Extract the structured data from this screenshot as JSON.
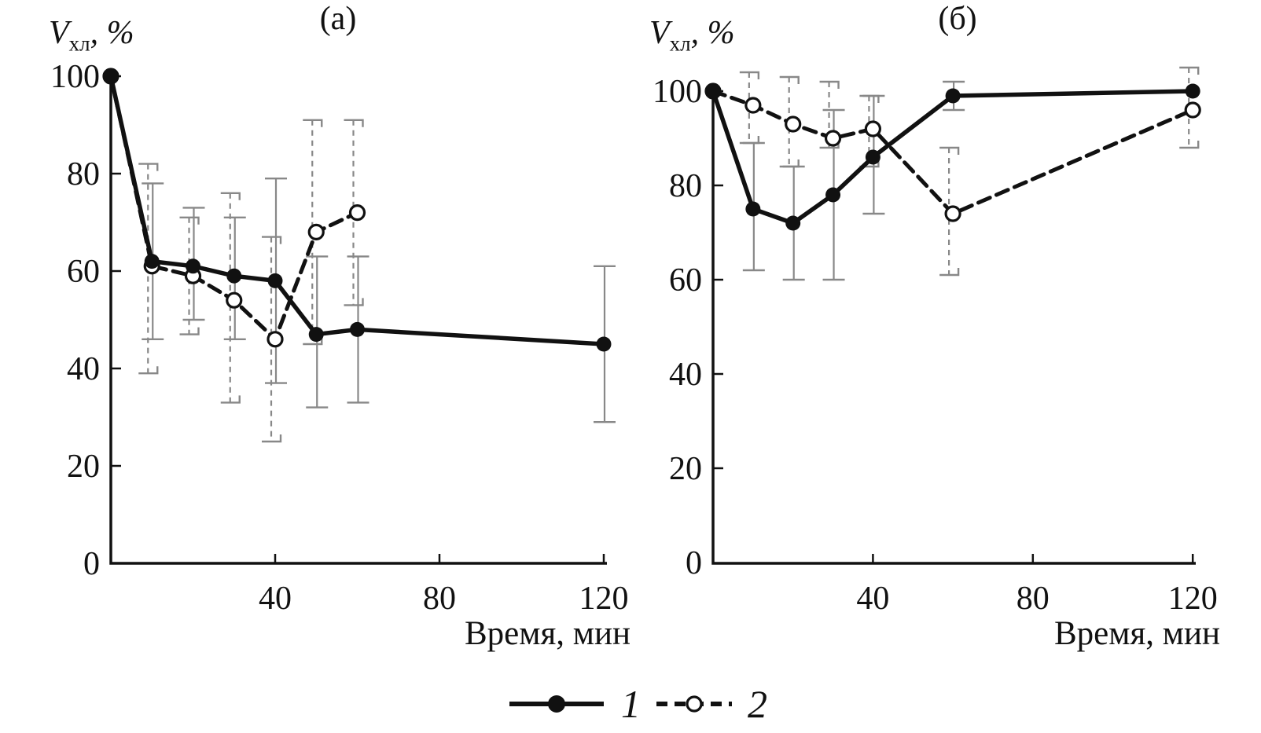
{
  "figure_background": "#ffffff",
  "colors": {
    "line": "#111111",
    "error_bar": "#888888",
    "text": "#111111",
    "marker_fill": "#111111",
    "open_marker_fill": "#ffffff"
  },
  "legend": {
    "item1_label": "1",
    "item2_label": "2"
  },
  "chart_data": [
    {
      "type": "line",
      "title": "(а)",
      "ylabel": "Vхл, %",
      "ylabel_parts": {
        "v": "V",
        "sub": "хл",
        "rest": ", %"
      },
      "xlabel": "Время, мин",
      "xlim": [
        0,
        120
      ],
      "ylim": [
        0,
        100
      ],
      "x_ticks": [
        40,
        80,
        120
      ],
      "y_ticks": [
        0,
        20,
        40,
        60,
        80,
        100
      ],
      "grid": false,
      "legend_position": "bottom-center-shared",
      "series": [
        {
          "name": "1",
          "line": "solid",
          "marker": "filled-circle",
          "x": [
            0,
            10,
            20,
            30,
            40,
            50,
            60,
            120
          ],
          "y": [
            100,
            62,
            61,
            59,
            58,
            47,
            48,
            45
          ],
          "err_low": [
            null,
            46,
            50,
            46,
            37,
            32,
            33,
            29
          ],
          "err_high": [
            null,
            78,
            73,
            71,
            79,
            63,
            63,
            61
          ]
        },
        {
          "name": "2",
          "line": "dashed",
          "marker": "open-circle",
          "x": [
            0,
            10,
            20,
            30,
            40,
            50,
            60
          ],
          "y": [
            100,
            61,
            59,
            54,
            46,
            68,
            72
          ],
          "err_low": [
            null,
            39,
            47,
            33,
            25,
            45,
            53
          ],
          "err_high": [
            null,
            82,
            71,
            76,
            67,
            91,
            91
          ]
        }
      ]
    },
    {
      "type": "line",
      "title": "(б)",
      "ylabel": "Vхл, %",
      "ylabel_parts": {
        "v": "V",
        "sub": "хл",
        "rest": ", %"
      },
      "xlabel": "Время, мин",
      "xlim": [
        0,
        120
      ],
      "ylim": [
        0,
        100
      ],
      "x_ticks": [
        40,
        80,
        120
      ],
      "y_ticks": [
        0,
        20,
        40,
        60,
        80,
        100
      ],
      "grid": false,
      "legend_position": "bottom-center-shared",
      "series": [
        {
          "name": "1",
          "line": "solid",
          "marker": "filled-circle",
          "x": [
            0,
            10,
            20,
            30,
            40,
            60,
            120
          ],
          "y": [
            100,
            75,
            72,
            78,
            86,
            99,
            100
          ],
          "err_low": [
            null,
            62,
            60,
            60,
            74,
            96,
            null
          ],
          "err_high": [
            null,
            89,
            84,
            96,
            99,
            102,
            null
          ]
        },
        {
          "name": "2",
          "line": "dashed",
          "marker": "open-circle",
          "x": [
            0,
            10,
            20,
            30,
            40,
            60,
            120
          ],
          "y": [
            100,
            97,
            93,
            90,
            92,
            74,
            96
          ],
          "err_low": [
            null,
            89,
            84,
            88,
            84,
            61,
            88
          ],
          "err_high": [
            null,
            104,
            103,
            102,
            99,
            88,
            105
          ]
        }
      ]
    }
  ]
}
